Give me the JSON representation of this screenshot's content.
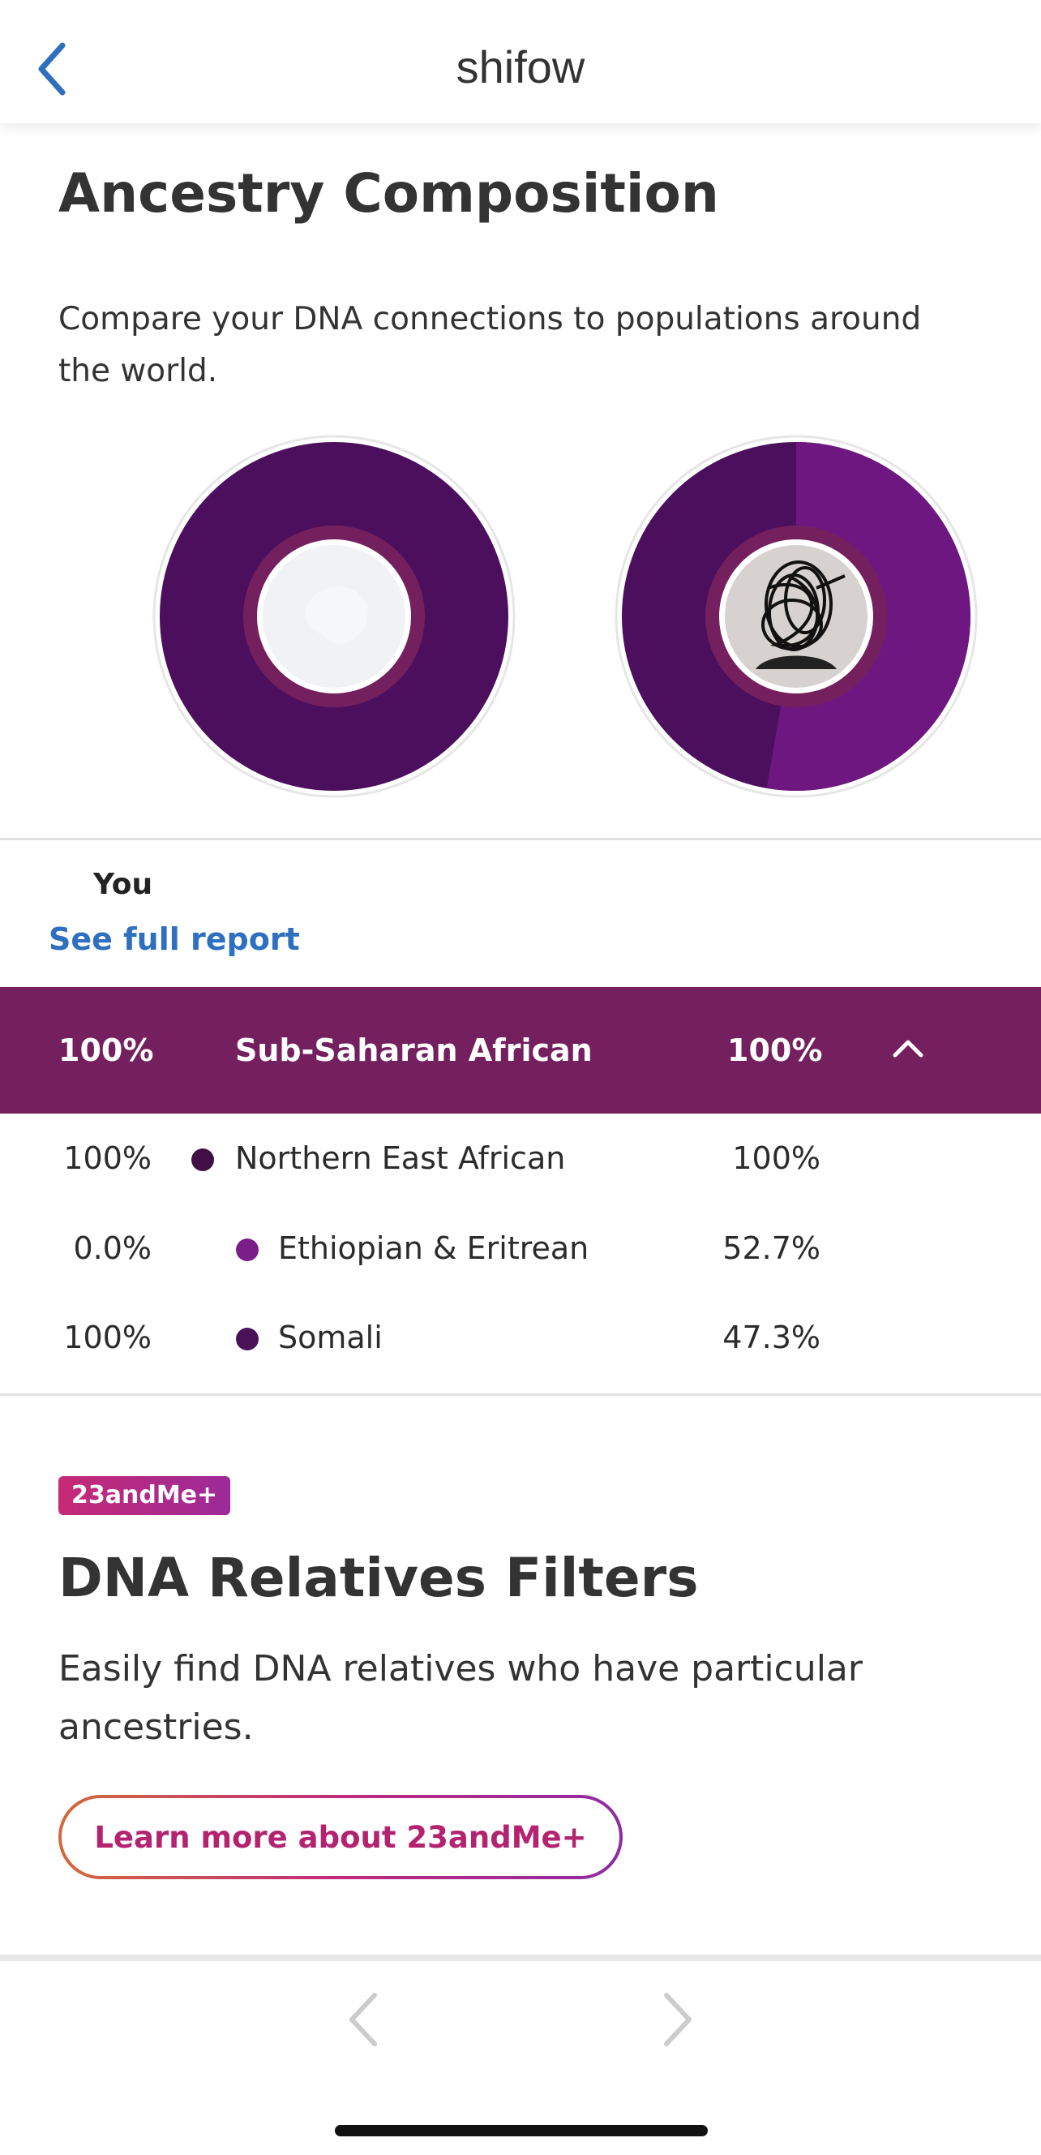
{
  "header": {
    "title": "shifow",
    "back_icon": "chevron-left-icon"
  },
  "section": {
    "title": "Ancestry Composition",
    "description": "Compare your DNA connections to populations around the world."
  },
  "comparison": {
    "you_label": "You",
    "see_full_report": "See full report",
    "left_donut": {
      "dark_fraction": 1.0
    },
    "right_donut": {
      "dark_fraction": 0.473,
      "light_fraction": 0.527
    }
  },
  "summary": {
    "left_value": "100%",
    "name": "Sub-Saharan African",
    "right_value": "100%",
    "toggle_icon": "chevron-up-icon"
  },
  "rows": [
    {
      "left": "100%",
      "label": "Northern East African",
      "right": "100%",
      "color": "#3f0f45",
      "level": 1
    },
    {
      "left": "0.0%",
      "label": "Ethiopian & Eritrean",
      "right": "52.7%",
      "color": "#7a1f8a",
      "level": 2
    },
    {
      "left": "100%",
      "label": "Somali",
      "right": "47.3%",
      "color": "#4b1158",
      "level": 2
    }
  ],
  "promo": {
    "badge": "23andMe+",
    "title": "DNA Relatives Filters",
    "description": "Easily find DNA relatives who have particular ancestries.",
    "button": "Learn more about 23andMe+"
  },
  "colors": {
    "summary_bar": "#75205e",
    "link": "#2f6fc0",
    "donut_dark": "#4b0f5d",
    "donut_light": "#6e1780",
    "ring_inner": "#75205e"
  },
  "bottom_nav": {
    "prev_icon": "chevron-left-icon",
    "next_icon": "chevron-right-icon"
  }
}
